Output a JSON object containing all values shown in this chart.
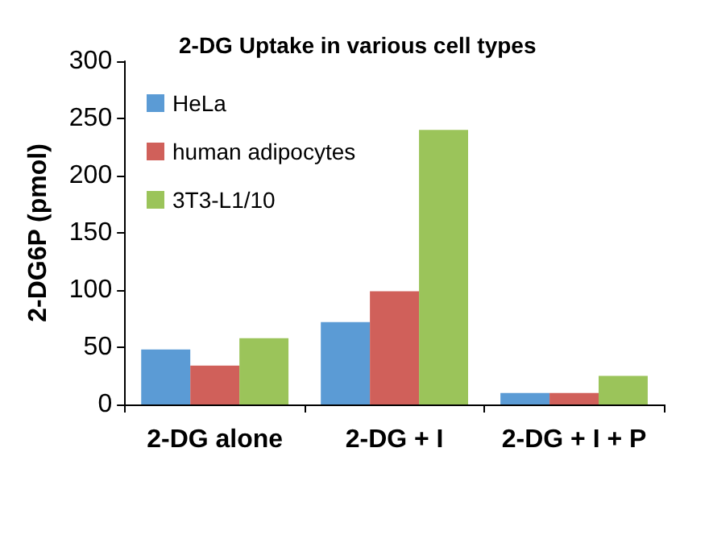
{
  "chart_data": {
    "type": "bar",
    "title": "2-DG Uptake in various cell types",
    "ylabel": "2-DG6P (pmol)",
    "categories": [
      "2-DG alone",
      "2-DG + I",
      "2-DG + I + P"
    ],
    "series": [
      {
        "name": "HeLa",
        "color": "#5b9bd5",
        "values": [
          48,
          72,
          10
        ]
      },
      {
        "name": "human adipocytes",
        "color": "#d0605a",
        "values": [
          34,
          99,
          10
        ]
      },
      {
        "name": "3T3-L1/10",
        "color": "#9bc45a",
        "values": [
          58,
          240,
          25
        ]
      }
    ],
    "ylim": [
      0,
      300
    ],
    "yticks": [
      0,
      50,
      100,
      150,
      200,
      250,
      300
    ],
    "grid": false,
    "legend": "top left"
  }
}
